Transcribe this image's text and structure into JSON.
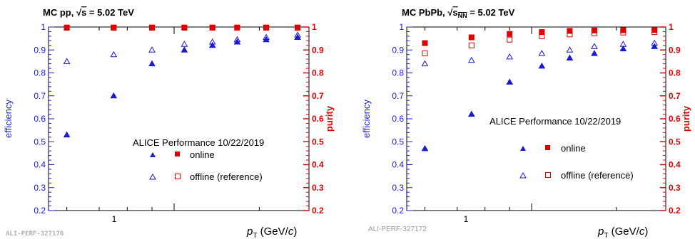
{
  "chart_data": [
    {
      "type": "scatter",
      "title": "MC pp, √s = 5.02 TeV",
      "annotation": "ALICE Performance 10/22/2019",
      "watermark": "ALI-PERF-327176",
      "xlabel": "p_T (GeV/c)",
      "xlabel_main": "p",
      "xlabel_sub": "T",
      "xlabel_unit_pre": " (GeV/",
      "xlabel_unit_c": "c",
      "xlabel_unit_post": ")",
      "x_scale": "log",
      "xlim": [
        0.55,
        1.9
      ],
      "x_tick_labels": [
        "1"
      ],
      "ylabel_left": "efficiency",
      "ylabel_right": "purity",
      "ylim_left": [
        0.2,
        1.0
      ],
      "ylim_right": [
        0.2,
        1.0
      ],
      "y_tick_labels": [
        "0.2",
        "0.3",
        "0.4",
        "0.5",
        "0.6",
        "0.7",
        "0.8",
        "0.9",
        "1"
      ],
      "legend_position": "bottom-right",
      "legend": {
        "online": "online",
        "offline": "offline (reference)"
      },
      "series": [
        {
          "name": "online",
          "metric": "efficiency",
          "axis": "left",
          "color": "#1a1ad6",
          "marker": "filled-triangle",
          "x": [
            0.6,
            0.75,
            0.9,
            1.05,
            1.2,
            1.35,
            1.55,
            1.8
          ],
          "y": [
            0.53,
            0.7,
            0.84,
            0.9,
            0.92,
            0.935,
            0.945,
            0.955
          ]
        },
        {
          "name": "offline (reference)",
          "metric": "efficiency",
          "axis": "left",
          "color": "#1a1ad6",
          "marker": "open-triangle",
          "x": [
            0.6,
            0.75,
            0.9,
            1.05,
            1.2,
            1.35,
            1.55,
            1.8
          ],
          "y": [
            0.85,
            0.88,
            0.9,
            0.925,
            0.935,
            0.945,
            0.955,
            0.965
          ]
        },
        {
          "name": "online",
          "metric": "purity",
          "axis": "right",
          "color": "#e00000",
          "marker": "filled-square",
          "x": [
            0.6,
            0.75,
            0.9,
            1.05,
            1.2,
            1.35,
            1.55,
            1.8
          ],
          "y": [
            0.998,
            0.998,
            0.998,
            0.998,
            0.998,
            0.998,
            0.998,
            0.998
          ]
        },
        {
          "name": "offline (reference)",
          "metric": "purity",
          "axis": "right",
          "color": "#e00000",
          "marker": "open-square",
          "x": [
            0.6,
            0.75,
            0.9,
            1.05,
            1.2,
            1.35,
            1.55,
            1.8
          ],
          "y": [
            0.997,
            0.997,
            0.997,
            0.997,
            0.997,
            0.997,
            0.997,
            0.997
          ]
        }
      ]
    },
    {
      "type": "scatter",
      "title": "MC PbPb, √sNN = 5.02 TeV",
      "annotation": "ALICE Performance 10/22/2019",
      "watermark": "ALI-PERF-327172",
      "xlabel": "p_T (GeV/c)",
      "xlabel_main": "p",
      "xlabel_sub": "T",
      "xlabel_unit_pre": " (GeV/",
      "xlabel_unit_c": "c",
      "xlabel_unit_post": ")",
      "x_scale": "log",
      "xlim": [
        0.55,
        1.9
      ],
      "x_tick_labels": [
        "1"
      ],
      "ylabel_left": "efficiency",
      "ylabel_right": "purity",
      "ylim_left": [
        0.2,
        1.0
      ],
      "ylim_right": [
        0.2,
        1.0
      ],
      "y_tick_labels": [
        "0.2",
        "0.3",
        "0.4",
        "0.5",
        "0.6",
        "0.7",
        "0.8",
        "0.9",
        "1"
      ],
      "legend_position": "bottom-right",
      "legend": {
        "online": "online",
        "offline": "offline (reference)"
      },
      "series": [
        {
          "name": "online",
          "metric": "efficiency",
          "axis": "left",
          "color": "#1a1ad6",
          "marker": "filled-triangle",
          "x": [
            0.6,
            0.75,
            0.9,
            1.05,
            1.2,
            1.35,
            1.55,
            1.8
          ],
          "y": [
            0.47,
            0.62,
            0.76,
            0.83,
            0.865,
            0.885,
            0.905,
            0.915
          ]
        },
        {
          "name": "offline (reference)",
          "metric": "efficiency",
          "axis": "left",
          "color": "#1a1ad6",
          "marker": "open-triangle",
          "x": [
            0.6,
            0.75,
            0.9,
            1.05,
            1.2,
            1.35,
            1.55,
            1.8
          ],
          "y": [
            0.84,
            0.855,
            0.87,
            0.885,
            0.9,
            0.915,
            0.925,
            0.93
          ]
        },
        {
          "name": "online",
          "metric": "purity",
          "axis": "right",
          "color": "#e00000",
          "marker": "filled-square",
          "x": [
            0.6,
            0.75,
            0.9,
            1.05,
            1.2,
            1.35,
            1.55,
            1.8
          ],
          "y": [
            0.93,
            0.955,
            0.97,
            0.978,
            0.983,
            0.985,
            0.986,
            0.987
          ]
        },
        {
          "name": "offline (reference)",
          "metric": "purity",
          "axis": "right",
          "color": "#e00000",
          "marker": "open-square",
          "x": [
            0.6,
            0.75,
            0.9,
            1.05,
            1.2,
            1.35,
            1.55,
            1.8
          ],
          "y": [
            0.885,
            0.92,
            0.945,
            0.96,
            0.968,
            0.973,
            0.976,
            0.978
          ]
        }
      ]
    }
  ]
}
